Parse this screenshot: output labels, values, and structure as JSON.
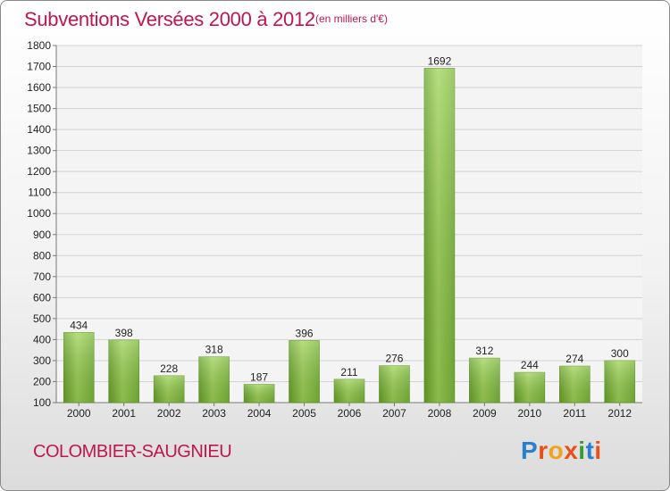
{
  "header": {
    "title": "Subventions Versées 2000 à 2012",
    "subtitle": "(en milliers d'€)"
  },
  "footer": {
    "commune": "COLOMBIER-SAUGNIEU",
    "logo_letters": [
      "P",
      "r",
      "o",
      "x",
      "i",
      "t",
      "i"
    ],
    "logo_colors": [
      "#2b7fd0",
      "#e8501a",
      "#f2a21c",
      "#e8501a",
      "#3a9c2e",
      "#2b7fd0",
      "#e8501a"
    ]
  },
  "chart_data": {
    "type": "bar",
    "categories": [
      "2000",
      "2001",
      "2002",
      "2003",
      "2004",
      "2005",
      "2006",
      "2007",
      "2008",
      "2009",
      "2010",
      "2011",
      "2012"
    ],
    "values": [
      434,
      398,
      228,
      318,
      187,
      396,
      211,
      276,
      1692,
      312,
      244,
      274,
      300
    ],
    "title": "Subventions Versées 2000 à 2012",
    "ylim": [
      100,
      1800
    ],
    "yticks": [
      100,
      200,
      300,
      400,
      500,
      600,
      700,
      800,
      900,
      1000,
      1100,
      1200,
      1300,
      1400,
      1500,
      1600,
      1700,
      1800
    ],
    "grid": true,
    "bar_color": "#8cc63f",
    "text_color": "#c0164f"
  }
}
